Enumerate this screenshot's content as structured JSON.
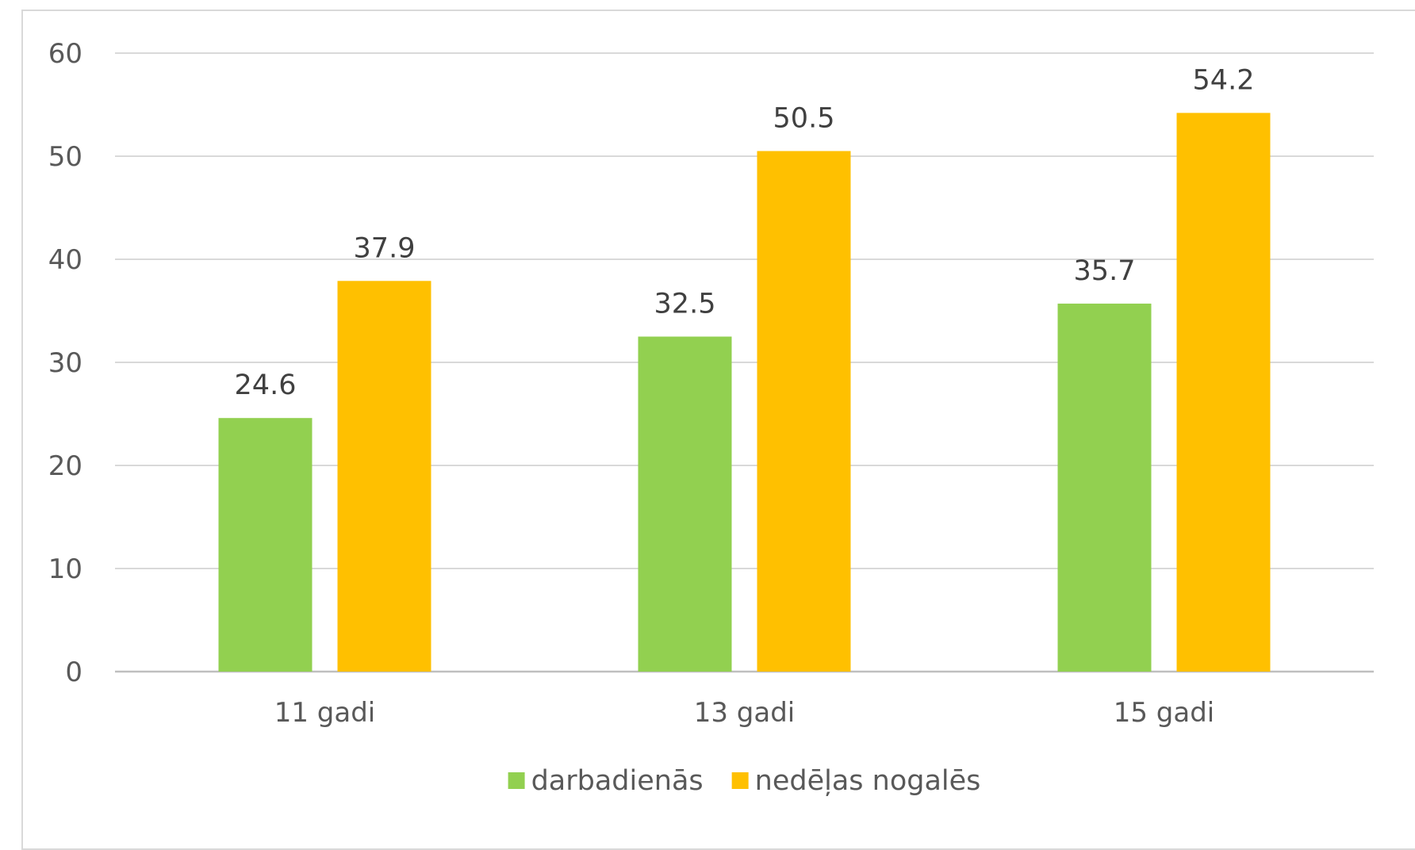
{
  "chart_data": {
    "type": "bar",
    "title": "",
    "xlabel": "",
    "ylabel": "",
    "categories": [
      "11 gadi",
      "13 gadi",
      "15 gadi"
    ],
    "series": [
      {
        "name": "darbadienās",
        "values": [
          24.6,
          32.5,
          35.7
        ],
        "color": "#92d050"
      },
      {
        "name": "nedēļas nogalēs",
        "values": [
          37.9,
          50.5,
          54.2
        ],
        "color": "#ffc000"
      }
    ],
    "ylim": [
      0,
      60
    ],
    "yticks": [
      "0",
      "10",
      "20",
      "30",
      "40",
      "50",
      "60"
    ],
    "grid": true,
    "legend": "bottom",
    "data_labels": true
  }
}
